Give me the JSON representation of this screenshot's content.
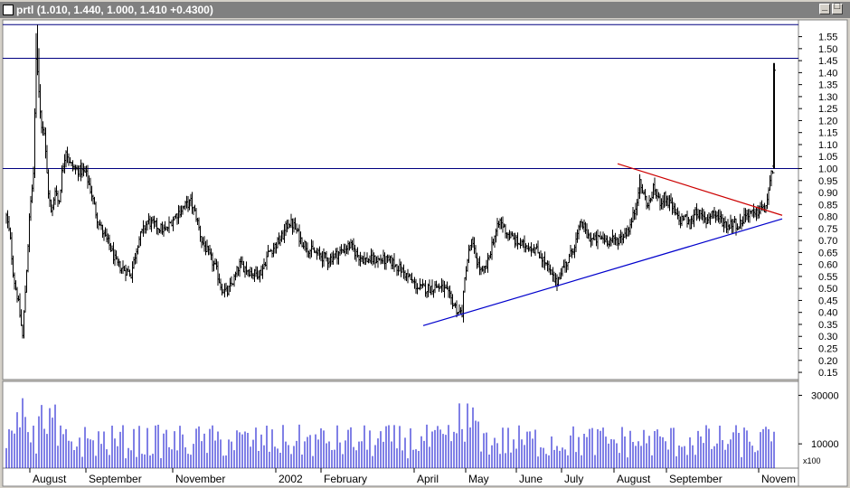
{
  "window": {
    "title_name": "prtl",
    "title_values": "(1.010, 1.440, 1.000, 1.410 +0.4300)"
  },
  "colors": {
    "background": "#ffffff",
    "bars": "#000000",
    "volume": "#0000cc",
    "horizontal_lines": "#000080",
    "support_line": "#0000cc",
    "resistance_line": "#cc0000",
    "frame": "#d4d0c8"
  },
  "chart_data": [
    {
      "type": "ohlc",
      "title": "prtl",
      "ohlc_last": {
        "open": 1.01,
        "high": 1.44,
        "low": 1.0,
        "close": 1.41,
        "change": 0.43
      },
      "y_ticks": [
        "0.15",
        "0.20",
        "0.25",
        "0.30",
        "0.35",
        "0.40",
        "0.45",
        "0.50",
        "0.55",
        "0.60",
        "0.65",
        "0.70",
        "0.75",
        "0.80",
        "0.85",
        "0.90",
        "0.95",
        "1.00",
        "1.05",
        "1.10",
        "1.15",
        "1.20",
        "1.25",
        "1.30",
        "1.35",
        "1.40",
        "1.45",
        "1.50",
        "1.55"
      ],
      "ylim": [
        0.12,
        1.62
      ],
      "x_labels": [
        "August",
        "September",
        "November",
        "2002",
        "February",
        "April",
        "May",
        "June",
        "July",
        "August",
        "September",
        "Novem"
      ],
      "x_label_index": [
        30,
        92,
        188,
        302,
        352,
        455,
        512,
        568,
        618,
        676,
        734,
        836
      ],
      "x_range": [
        0,
        880
      ],
      "horizontal_lines": [
        1.0,
        1.46,
        1.6
      ],
      "support_line": {
        "start": {
          "x": 465,
          "y": 0.345
        },
        "end": {
          "x": 862,
          "y": 0.79
        }
      },
      "resistance_line": {
        "start": {
          "x": 680,
          "y": 1.02
        },
        "end": {
          "x": 862,
          "y": 0.805
        }
      },
      "price_anchors": [
        [
          4,
          0.8
        ],
        [
          8,
          0.72
        ],
        [
          12,
          0.55
        ],
        [
          17,
          0.45
        ],
        [
          22,
          0.3
        ],
        [
          26,
          0.55
        ],
        [
          30,
          0.82
        ],
        [
          34,
          0.98
        ],
        [
          37,
          1.45
        ],
        [
          39,
          1.4
        ],
        [
          42,
          1.2
        ],
        [
          46,
          1.15
        ],
        [
          50,
          0.92
        ],
        [
          54,
          0.8
        ],
        [
          58,
          0.92
        ],
        [
          62,
          0.85
        ],
        [
          66,
          1.0
        ],
        [
          70,
          1.08
        ],
        [
          74,
          1.02
        ],
        [
          80,
          1.0
        ],
        [
          86,
          0.99
        ],
        [
          92,
          0.98
        ],
        [
          98,
          0.9
        ],
        [
          104,
          0.8
        ],
        [
          112,
          0.72
        ],
        [
          118,
          0.68
        ],
        [
          126,
          0.6
        ],
        [
          134,
          0.58
        ],
        [
          142,
          0.56
        ],
        [
          150,
          0.7
        ],
        [
          160,
          0.78
        ],
        [
          170,
          0.76
        ],
        [
          180,
          0.74
        ],
        [
          190,
          0.8
        ],
        [
          200,
          0.84
        ],
        [
          208,
          0.86
        ],
        [
          214,
          0.8
        ],
        [
          220,
          0.7
        ],
        [
          228,
          0.64
        ],
        [
          236,
          0.58
        ],
        [
          242,
          0.5
        ],
        [
          248,
          0.48
        ],
        [
          256,
          0.54
        ],
        [
          262,
          0.6
        ],
        [
          270,
          0.58
        ],
        [
          278,
          0.56
        ],
        [
          286,
          0.57
        ],
        [
          294,
          0.65
        ],
        [
          302,
          0.68
        ],
        [
          310,
          0.72
        ],
        [
          316,
          0.78
        ],
        [
          322,
          0.76
        ],
        [
          330,
          0.7
        ],
        [
          340,
          0.66
        ],
        [
          350,
          0.64
        ],
        [
          360,
          0.62
        ],
        [
          368,
          0.64
        ],
        [
          376,
          0.66
        ],
        [
          384,
          0.68
        ],
        [
          392,
          0.64
        ],
        [
          400,
          0.62
        ],
        [
          410,
          0.62
        ],
        [
          420,
          0.62
        ],
        [
          430,
          0.61
        ],
        [
          440,
          0.58
        ],
        [
          450,
          0.54
        ],
        [
          460,
          0.5
        ],
        [
          470,
          0.5
        ],
        [
          480,
          0.51
        ],
        [
          490,
          0.49
        ],
        [
          498,
          0.44
        ],
        [
          504,
          0.4
        ],
        [
          508,
          0.4
        ],
        [
          512,
          0.58
        ],
        [
          518,
          0.7
        ],
        [
          524,
          0.62
        ],
        [
          530,
          0.56
        ],
        [
          536,
          0.6
        ],
        [
          542,
          0.7
        ],
        [
          550,
          0.78
        ],
        [
          558,
          0.73
        ],
        [
          566,
          0.7
        ],
        [
          574,
          0.68
        ],
        [
          582,
          0.68
        ],
        [
          590,
          0.66
        ],
        [
          598,
          0.62
        ],
        [
          606,
          0.56
        ],
        [
          612,
          0.52
        ],
        [
          618,
          0.58
        ],
        [
          626,
          0.62
        ],
        [
          634,
          0.7
        ],
        [
          640,
          0.78
        ],
        [
          646,
          0.72
        ],
        [
          654,
          0.7
        ],
        [
          662,
          0.71
        ],
        [
          670,
          0.7
        ],
        [
          678,
          0.7
        ],
        [
          686,
          0.72
        ],
        [
          694,
          0.76
        ],
        [
          700,
          0.84
        ],
        [
          704,
          0.94
        ],
        [
          708,
          0.9
        ],
        [
          714,
          0.84
        ],
        [
          720,
          0.92
        ],
        [
          726,
          0.86
        ],
        [
          732,
          0.88
        ],
        [
          740,
          0.84
        ],
        [
          748,
          0.78
        ],
        [
          754,
          0.8
        ],
        [
          760,
          0.76
        ],
        [
          766,
          0.83
        ],
        [
          772,
          0.8
        ],
        [
          778,
          0.78
        ],
        [
          784,
          0.82
        ],
        [
          790,
          0.8
        ],
        [
          796,
          0.78
        ],
        [
          802,
          0.76
        ],
        [
          808,
          0.78
        ],
        [
          814,
          0.76
        ],
        [
          820,
          0.8
        ],
        [
          826,
          0.82
        ],
        [
          832,
          0.8
        ],
        [
          838,
          0.84
        ],
        [
          842,
          0.82
        ],
        [
          846,
          0.88
        ],
        [
          849,
          0.95
        ],
        [
          852,
          1.01
        ]
      ],
      "last_bar": {
        "x": 853,
        "open": 1.01,
        "high": 1.44,
        "low": 1.0,
        "close": 1.41
      }
    },
    {
      "type": "bar",
      "title": "Volume",
      "y_ticks": [
        "30000",
        "10000"
      ],
      "multiplier_label": "x100",
      "volume_scale_max": 35000
    }
  ]
}
